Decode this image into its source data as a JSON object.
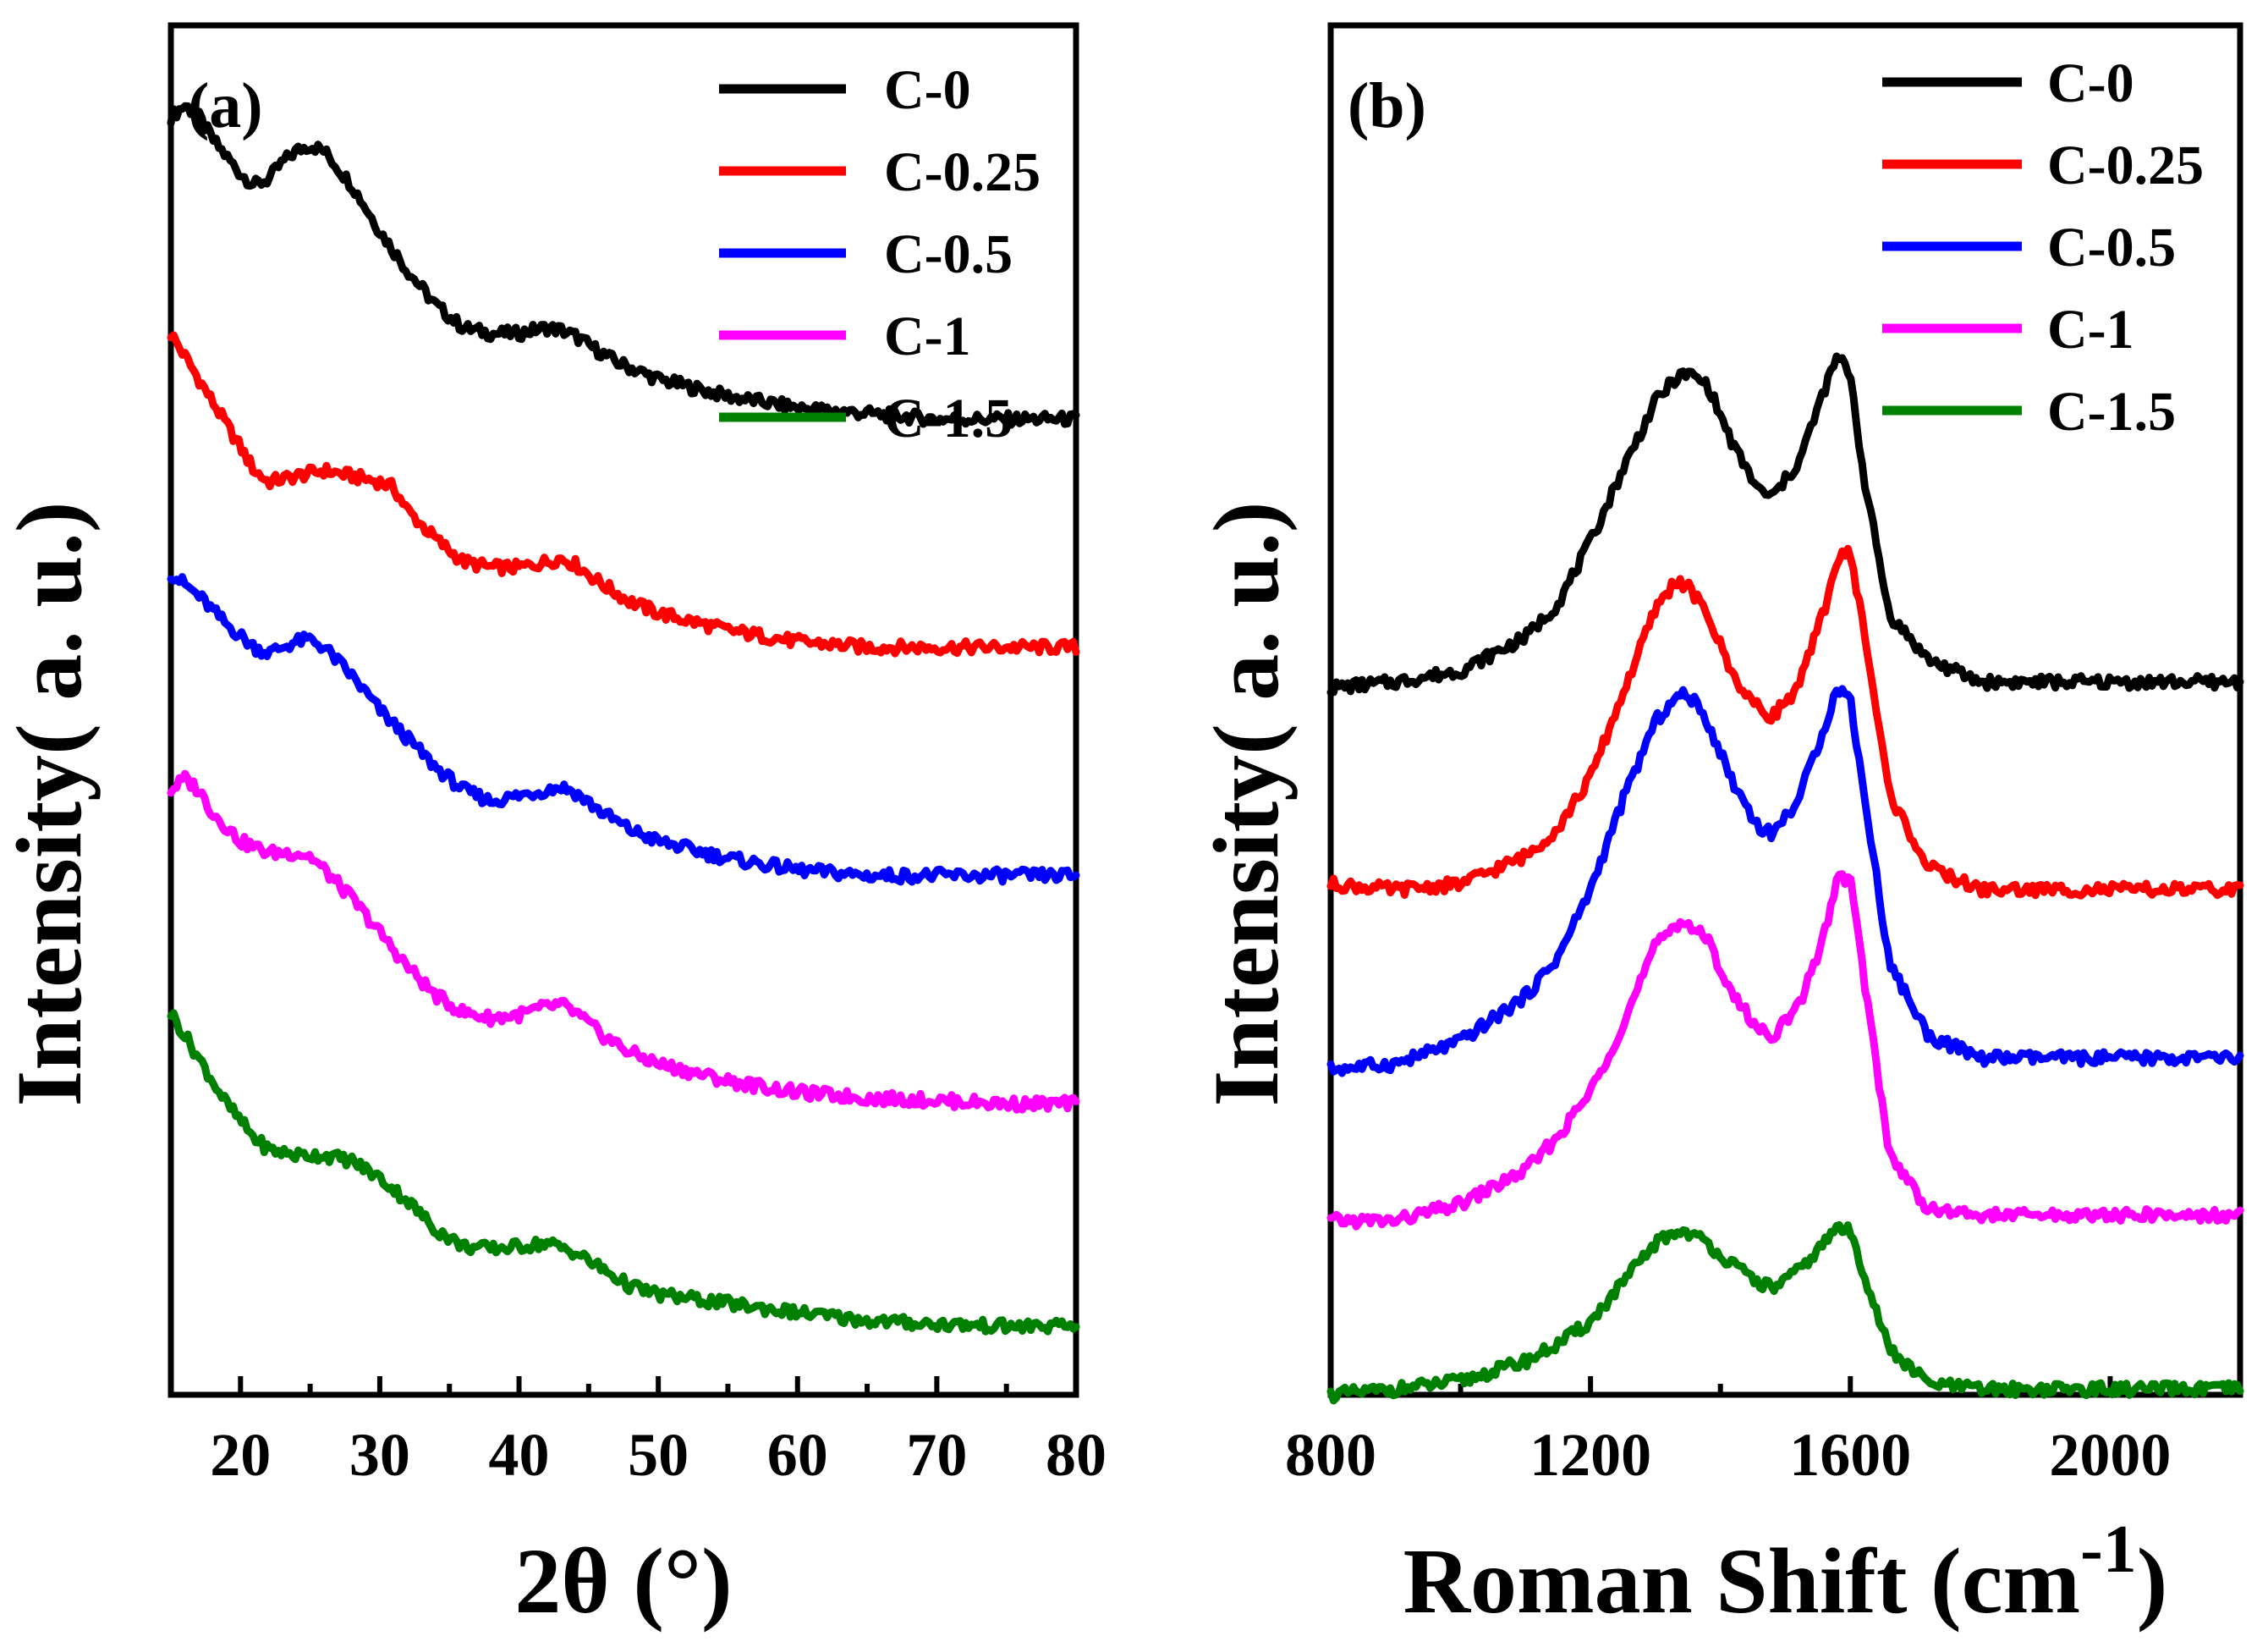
{
  "chart_data": [
    {
      "type": "line",
      "panel_label": "(a)",
      "xlabel": "2θ (°)",
      "ylabel": "Intensity(   a. u.)",
      "xlim": [
        15,
        80
      ],
      "xticks": [
        20,
        30,
        40,
        50,
        60,
        70,
        80
      ],
      "legend_position": "top-right",
      "grid": false,
      "series": [
        {
          "name": "C-0",
          "color": "#000000",
          "offset": 8.0,
          "x": [
            15,
            16,
            17,
            18,
            20,
            21,
            22,
            23,
            24,
            25,
            26,
            27,
            28,
            30,
            32,
            34,
            36,
            38,
            40,
            41,
            42,
            43,
            44,
            45,
            47,
            50,
            55,
            60,
            65,
            70,
            75,
            80
          ],
          "y": [
            3.2,
            3.3,
            3.2,
            3.0,
            2.7,
            2.6,
            2.65,
            2.8,
            2.9,
            2.95,
            2.9,
            2.75,
            2.6,
            2.2,
            1.85,
            1.55,
            1.35,
            1.3,
            1.3,
            1.33,
            1.35,
            1.33,
            1.28,
            1.2,
            1.05,
            0.9,
            0.75,
            0.65,
            0.6,
            0.55,
            0.55,
            0.55
          ]
        },
        {
          "name": "C-0.25",
          "color": "#ff0000",
          "offset": 6.0,
          "x": [
            15,
            17,
            19,
            21,
            22,
            24,
            26,
            28,
            30,
            31,
            32,
            34,
            36,
            38,
            40,
            42,
            43,
            44,
            46,
            48,
            50,
            55,
            60,
            65,
            70,
            75,
            80
          ],
          "y": [
            3.3,
            2.9,
            2.5,
            2.1,
            2.0,
            2.05,
            2.1,
            2.05,
            2.0,
            1.95,
            1.75,
            1.5,
            1.3,
            1.25,
            1.25,
            1.3,
            1.33,
            1.28,
            1.1,
            0.95,
            0.85,
            0.7,
            0.6,
            0.55,
            0.55,
            0.55,
            0.55
          ]
        },
        {
          "name": "C-0.5",
          "color": "#0000ff",
          "offset": 4.0,
          "x": [
            15,
            17,
            19,
            21,
            22,
            23,
            24,
            25,
            26,
            28,
            30,
            32,
            34,
            36,
            38,
            40,
            42,
            43,
            44,
            46,
            48,
            50,
            55,
            60,
            65,
            70,
            75,
            80
          ],
          "y": [
            3.2,
            3.0,
            2.75,
            2.55,
            2.5,
            2.55,
            2.6,
            2.62,
            2.55,
            2.3,
            2.0,
            1.75,
            1.5,
            1.3,
            1.2,
            1.25,
            1.3,
            1.33,
            1.28,
            1.1,
            0.95,
            0.85,
            0.7,
            0.6,
            0.55,
            0.55,
            0.55,
            0.55
          ]
        },
        {
          "name": "C-1",
          "color": "#ff00ff",
          "offset": 2.0,
          "x": [
            15,
            16,
            17,
            18,
            20,
            22,
            24,
            25,
            26,
            28,
            30,
            32,
            34,
            36,
            38,
            40,
            42,
            43,
            44,
            46,
            48,
            50,
            55,
            60,
            65,
            70,
            75,
            80
          ],
          "y": [
            3.3,
            3.4,
            3.3,
            3.1,
            2.85,
            2.75,
            2.75,
            2.72,
            2.6,
            2.35,
            2.05,
            1.75,
            1.5,
            1.35,
            1.3,
            1.33,
            1.4,
            1.42,
            1.35,
            1.15,
            1.0,
            0.9,
            0.75,
            0.65,
            0.6,
            0.58,
            0.55,
            0.55
          ]
        },
        {
          "name": "C-1.5",
          "color": "#008000",
          "offset": 0.0,
          "x": [
            15,
            17,
            19,
            21,
            22,
            24,
            26,
            28,
            30,
            32,
            34,
            36,
            38,
            40,
            42,
            44,
            46,
            48,
            50,
            55,
            60,
            65,
            70,
            75,
            80
          ],
          "y": [
            3.35,
            2.95,
            2.55,
            2.25,
            2.15,
            2.1,
            2.1,
            2.05,
            1.9,
            1.7,
            1.45,
            1.3,
            1.28,
            1.3,
            1.33,
            1.25,
            1.1,
            0.95,
            0.88,
            0.8,
            0.72,
            0.65,
            0.62,
            0.6,
            0.6
          ]
        }
      ]
    },
    {
      "type": "line",
      "panel_label": "(b)",
      "xlabel": "Roman Shift (cm",
      "xlabel_superscript": "-1",
      "xlabel_suffix": ")",
      "ylabel": "Intensity(   a. u.)",
      "xlim": [
        800,
        2200
      ],
      "xticks": [
        800,
        1200,
        1600,
        2000
      ],
      "legend_position": "top-right",
      "grid": false,
      "series": [
        {
          "name": "C-0",
          "color": "#000000",
          "offset": 6.3,
          "x": [
            800,
            900,
            1000,
            1100,
            1150,
            1200,
            1250,
            1300,
            1330,
            1350,
            1380,
            1420,
            1460,
            1480,
            1520,
            1560,
            1580,
            1600,
            1620,
            1660,
            1720,
            1800,
            2000,
            2200
          ],
          "y": [
            0.0,
            0.05,
            0.15,
            0.45,
            0.75,
            1.3,
            1.95,
            2.55,
            2.75,
            2.8,
            2.7,
            2.15,
            1.75,
            1.7,
            2.0,
            2.65,
            2.95,
            2.8,
            1.9,
            0.65,
            0.25,
            0.05,
            0.05,
            0.05
          ]
        },
        {
          "name": "C-0.25",
          "color": "#ff0000",
          "offset": 4.45,
          "x": [
            800,
            900,
            1000,
            1100,
            1150,
            1200,
            1250,
            1300,
            1330,
            1350,
            1380,
            1420,
            1460,
            1480,
            1520,
            1560,
            1580,
            1600,
            1620,
            1660,
            1720,
            1800,
            2000,
            2200
          ],
          "y": [
            0.1,
            0.05,
            0.1,
            0.35,
            0.6,
            1.05,
            1.8,
            2.55,
            2.8,
            2.75,
            2.5,
            1.95,
            1.65,
            1.6,
            1.85,
            2.55,
            3.0,
            3.05,
            2.4,
            0.9,
            0.25,
            0.05,
            0.05,
            0.05
          ]
        },
        {
          "name": "C-0.5",
          "color": "#0000ff",
          "offset": 2.9,
          "x": [
            800,
            900,
            1000,
            1100,
            1150,
            1200,
            1250,
            1300,
            1330,
            1350,
            1380,
            1420,
            1460,
            1480,
            1520,
            1560,
            1580,
            1600,
            1620,
            1660,
            1720,
            1800,
            2000,
            2200
          ],
          "y": [
            0.0,
            0.05,
            0.25,
            0.65,
            1.0,
            1.6,
            2.4,
            3.1,
            3.3,
            3.35,
            3.1,
            2.55,
            2.15,
            2.1,
            2.4,
            3.05,
            3.4,
            3.3,
            2.5,
            0.95,
            0.3,
            0.1,
            0.1,
            0.1
          ]
        },
        {
          "name": "C-1",
          "color": "#ff00ff",
          "offset": 1.55,
          "x": [
            800,
            900,
            1000,
            1100,
            1150,
            1200,
            1250,
            1300,
            1330,
            1350,
            1380,
            1420,
            1460,
            1480,
            1520,
            1560,
            1580,
            1600,
            1620,
            1660,
            1720,
            1800,
            2000,
            2200
          ],
          "y": [
            0.0,
            0.0,
            0.15,
            0.45,
            0.75,
            1.15,
            1.75,
            2.45,
            2.65,
            2.65,
            2.5,
            2.0,
            1.7,
            1.65,
            1.9,
            2.55,
            3.05,
            3.05,
            2.2,
            0.6,
            0.1,
            0.05,
            0.05,
            0.05
          ]
        },
        {
          "name": "C-1.5",
          "color": "#008000",
          "offset": 0.0,
          "x": [
            800,
            900,
            1000,
            1100,
            1150,
            1200,
            1250,
            1300,
            1330,
            1350,
            1380,
            1420,
            1460,
            1480,
            1520,
            1560,
            1580,
            1600,
            1620,
            1660,
            1720,
            1800,
            2000,
            2200
          ],
          "y": [
            0.0,
            0.05,
            0.12,
            0.3,
            0.45,
            0.65,
            1.0,
            1.35,
            1.45,
            1.45,
            1.35,
            1.15,
            1.0,
            0.95,
            1.1,
            1.35,
            1.5,
            1.45,
            1.1,
            0.4,
            0.1,
            0.05,
            0.05,
            0.05
          ]
        }
      ]
    }
  ]
}
